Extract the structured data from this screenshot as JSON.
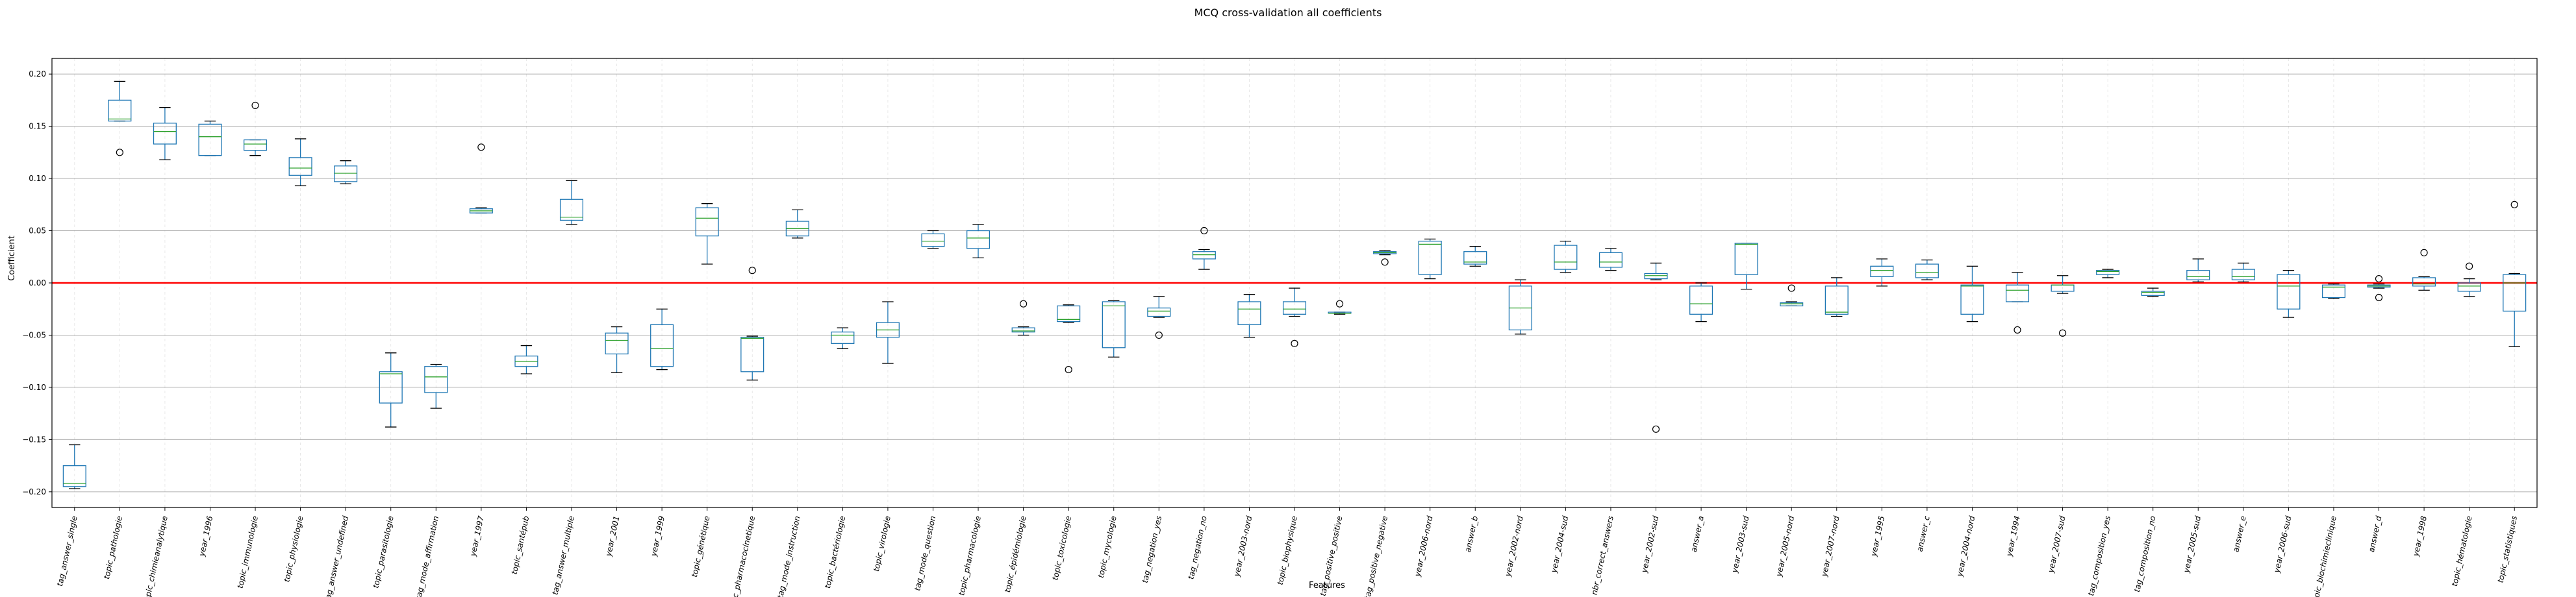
{
  "chart_data": {
    "type": "boxplot",
    "title": "MCQ cross-validation all coefficients",
    "xlabel": "Features",
    "ylabel": "Coefficient",
    "ylim": [
      -0.215,
      0.215
    ],
    "yticks": [
      0.2,
      0.15,
      0.1,
      0.05,
      0.0,
      -0.05,
      -0.1,
      -0.15,
      -0.2
    ],
    "ytick_labels": [
      "0.20",
      "0.15",
      "0.10",
      "0.05",
      "0.00",
      "−0.05",
      "−0.10",
      "−0.15",
      "−0.20"
    ],
    "grid": true,
    "reference_line": {
      "y": 0,
      "color": "#ff0000"
    },
    "colors": {
      "box": "#1f77b4",
      "median": "#2ca02c",
      "zero_line": "#ff0000",
      "grid": "#b0b0b0"
    },
    "boxes": [
      {
        "feature": "tag_answer_single",
        "whislo": -0.197,
        "q1": -0.195,
        "med": -0.192,
        "q3": -0.175,
        "whishi": -0.155,
        "fliers": []
      },
      {
        "feature": "topic_pathologie",
        "whislo": 0.155,
        "q1": 0.155,
        "med": 0.157,
        "q3": 0.175,
        "whishi": 0.193,
        "fliers": [
          0.125
        ]
      },
      {
        "feature": "topic_chimieanalytique",
        "whislo": 0.118,
        "q1": 0.133,
        "med": 0.145,
        "q3": 0.153,
        "whishi": 0.168,
        "fliers": []
      },
      {
        "feature": "year_1996",
        "whislo": 0.122,
        "q1": 0.122,
        "med": 0.14,
        "q3": 0.152,
        "whishi": 0.155,
        "fliers": []
      },
      {
        "feature": "topic_immunologie",
        "whislo": 0.122,
        "q1": 0.127,
        "med": 0.133,
        "q3": 0.137,
        "whishi": 0.137,
        "fliers": [
          0.17
        ]
      },
      {
        "feature": "topic_physiologie",
        "whislo": 0.093,
        "q1": 0.103,
        "med": 0.11,
        "q3": 0.12,
        "whishi": 0.138,
        "fliers": []
      },
      {
        "feature": "tag_answer_undefined",
        "whislo": 0.095,
        "q1": 0.097,
        "med": 0.105,
        "q3": 0.112,
        "whishi": 0.117,
        "fliers": []
      },
      {
        "feature": "topic_parasitologie",
        "whislo": -0.138,
        "q1": -0.115,
        "med": -0.087,
        "q3": -0.085,
        "whishi": -0.067,
        "fliers": []
      },
      {
        "feature": "tag_mode_affirmation",
        "whislo": -0.12,
        "q1": -0.105,
        "med": -0.09,
        "q3": -0.08,
        "whishi": -0.078,
        "fliers": []
      },
      {
        "feature": "year_1997",
        "whislo": 0.067,
        "q1": 0.067,
        "med": 0.069,
        "q3": 0.071,
        "whishi": 0.072,
        "fliers": [
          0.13
        ]
      },
      {
        "feature": "topic_santépub",
        "whislo": -0.087,
        "q1": -0.08,
        "med": -0.075,
        "q3": -0.07,
        "whishi": -0.06,
        "fliers": []
      },
      {
        "feature": "tag_answer_multiple",
        "whislo": 0.056,
        "q1": 0.06,
        "med": 0.063,
        "q3": 0.08,
        "whishi": 0.098,
        "fliers": []
      },
      {
        "feature": "year_2001",
        "whislo": -0.086,
        "q1": -0.068,
        "med": -0.055,
        "q3": -0.048,
        "whishi": -0.042,
        "fliers": []
      },
      {
        "feature": "year_1999",
        "whislo": -0.083,
        "q1": -0.08,
        "med": -0.063,
        "q3": -0.04,
        "whishi": -0.025,
        "fliers": []
      },
      {
        "feature": "topic_génétique",
        "whislo": 0.018,
        "q1": 0.045,
        "med": 0.062,
        "q3": 0.072,
        "whishi": 0.076,
        "fliers": []
      },
      {
        "feature": "topic_pharmacocinetique",
        "whislo": -0.093,
        "q1": -0.085,
        "med": -0.053,
        "q3": -0.052,
        "whishi": -0.051,
        "fliers": [
          0.012
        ]
      },
      {
        "feature": "tag_mode_instruction",
        "whislo": 0.043,
        "q1": 0.045,
        "med": 0.052,
        "q3": 0.059,
        "whishi": 0.07,
        "fliers": []
      },
      {
        "feature": "topic_bactériologie",
        "whislo": -0.063,
        "q1": -0.058,
        "med": -0.05,
        "q3": -0.047,
        "whishi": -0.043,
        "fliers": []
      },
      {
        "feature": "topic_virologie",
        "whislo": -0.077,
        "q1": -0.052,
        "med": -0.045,
        "q3": -0.038,
        "whishi": -0.018,
        "fliers": []
      },
      {
        "feature": "tag_mode_question",
        "whislo": 0.033,
        "q1": 0.035,
        "med": 0.04,
        "q3": 0.047,
        "whishi": 0.05,
        "fliers": []
      },
      {
        "feature": "topic_pharmacologie",
        "whislo": 0.024,
        "q1": 0.033,
        "med": 0.043,
        "q3": 0.05,
        "whishi": 0.056,
        "fliers": []
      },
      {
        "feature": "topic_épidémiologie",
        "whislo": -0.05,
        "q1": -0.047,
        "med": -0.046,
        "q3": -0.043,
        "whishi": -0.042,
        "fliers": [
          -0.02
        ]
      },
      {
        "feature": "topic_toxicologie",
        "whislo": -0.038,
        "q1": -0.037,
        "med": -0.035,
        "q3": -0.022,
        "whishi": -0.021,
        "fliers": [
          -0.083
        ]
      },
      {
        "feature": "topic_mycologie",
        "whislo": -0.071,
        "q1": -0.062,
        "med": -0.022,
        "q3": -0.018,
        "whishi": -0.017,
        "fliers": []
      },
      {
        "feature": "tag_negation_yes",
        "whislo": -0.033,
        "q1": -0.032,
        "med": -0.027,
        "q3": -0.024,
        "whishi": -0.013,
        "fliers": [
          -0.05
        ]
      },
      {
        "feature": "tag_negation_no",
        "whislo": 0.013,
        "q1": 0.023,
        "med": 0.027,
        "q3": 0.03,
        "whishi": 0.032,
        "fliers": [
          0.05
        ]
      },
      {
        "feature": "year_2003-nord",
        "whislo": -0.052,
        "q1": -0.04,
        "med": -0.025,
        "q3": -0.018,
        "whishi": -0.011,
        "fliers": []
      },
      {
        "feature": "topic_biophysique",
        "whislo": -0.032,
        "q1": -0.03,
        "med": -0.025,
        "q3": -0.018,
        "whishi": -0.005,
        "fliers": [
          -0.058
        ]
      },
      {
        "feature": "tag_positive_positive",
        "whislo": -0.03,
        "q1": -0.029,
        "med": -0.029,
        "q3": -0.028,
        "whishi": -0.028,
        "fliers": [
          -0.02
        ]
      },
      {
        "feature": "tag_positive_negative",
        "whislo": 0.027,
        "q1": 0.028,
        "med": 0.029,
        "q3": 0.03,
        "whishi": 0.031,
        "fliers": [
          0.02
        ]
      },
      {
        "feature": "year_2006-nord",
        "whislo": 0.004,
        "q1": 0.008,
        "med": 0.037,
        "q3": 0.04,
        "whishi": 0.042,
        "fliers": []
      },
      {
        "feature": "answer_b",
        "whislo": 0.016,
        "q1": 0.018,
        "med": 0.02,
        "q3": 0.03,
        "whishi": 0.035,
        "fliers": []
      },
      {
        "feature": "year_2002-nord",
        "whislo": -0.049,
        "q1": -0.045,
        "med": -0.024,
        "q3": -0.003,
        "whishi": 0.003,
        "fliers": []
      },
      {
        "feature": "year_2004-sud",
        "whislo": 0.01,
        "q1": 0.013,
        "med": 0.02,
        "q3": 0.036,
        "whishi": 0.04,
        "fliers": []
      },
      {
        "feature": "nbr_correct_answers",
        "whislo": 0.012,
        "q1": 0.015,
        "med": 0.02,
        "q3": 0.029,
        "whishi": 0.033,
        "fliers": []
      },
      {
        "feature": "year_2002-sud",
        "whislo": 0.003,
        "q1": 0.004,
        "med": 0.007,
        "q3": 0.009,
        "whishi": 0.019,
        "fliers": [
          -0.14
        ]
      },
      {
        "feature": "answer_a",
        "whislo": -0.037,
        "q1": -0.03,
        "med": -0.02,
        "q3": -0.003,
        "whishi": 0.0,
        "fliers": []
      },
      {
        "feature": "year_2003-sud",
        "whislo": -0.006,
        "q1": 0.008,
        "med": 0.037,
        "q3": 0.038,
        "whishi": 0.038,
        "fliers": []
      },
      {
        "feature": "year_2005-nord",
        "whislo": -0.022,
        "q1": -0.022,
        "med": -0.02,
        "q3": -0.019,
        "whishi": -0.018,
        "fliers": [
          -0.005
        ]
      },
      {
        "feature": "year_2007-nord",
        "whislo": -0.032,
        "q1": -0.03,
        "med": -0.028,
        "q3": -0.003,
        "whishi": 0.005,
        "fliers": []
      },
      {
        "feature": "year_1995",
        "whislo": -0.003,
        "q1": 0.006,
        "med": 0.012,
        "q3": 0.016,
        "whishi": 0.023,
        "fliers": []
      },
      {
        "feature": "answer_c",
        "whislo": 0.003,
        "q1": 0.005,
        "med": 0.01,
        "q3": 0.018,
        "whishi": 0.022,
        "fliers": []
      },
      {
        "feature": "year_2004-nord",
        "whislo": -0.037,
        "q1": -0.03,
        "med": -0.003,
        "q3": -0.002,
        "whishi": 0.016,
        "fliers": []
      },
      {
        "feature": "year_1994",
        "whislo": -0.018,
        "q1": -0.018,
        "med": -0.007,
        "q3": -0.002,
        "whishi": 0.01,
        "fliers": [
          -0.045
        ]
      },
      {
        "feature": "year_2007-sud",
        "whislo": -0.01,
        "q1": -0.008,
        "med": -0.002,
        "q3": -0.002,
        "whishi": 0.007,
        "fliers": [
          -0.048
        ]
      },
      {
        "feature": "tag_composition_yes",
        "whislo": 0.005,
        "q1": 0.008,
        "med": 0.011,
        "q3": 0.012,
        "whishi": 0.013,
        "fliers": []
      },
      {
        "feature": "tag_composition_no",
        "whislo": -0.013,
        "q1": -0.012,
        "med": -0.009,
        "q3": -0.008,
        "whishi": -0.005,
        "fliers": []
      },
      {
        "feature": "year_2005-sud",
        "whislo": 0.001,
        "q1": 0.003,
        "med": 0.006,
        "q3": 0.012,
        "whishi": 0.023,
        "fliers": []
      },
      {
        "feature": "answer_e",
        "whislo": 0.001,
        "q1": 0.003,
        "med": 0.006,
        "q3": 0.013,
        "whishi": 0.019,
        "fliers": []
      },
      {
        "feature": "year_2006-sud",
        "whislo": -0.033,
        "q1": -0.025,
        "med": -0.003,
        "q3": 0.008,
        "whishi": 0.012,
        "fliers": []
      },
      {
        "feature": "topic_biochimieclinique",
        "whislo": -0.015,
        "q1": -0.014,
        "med": -0.004,
        "q3": -0.002,
        "whishi": -0.001,
        "fliers": []
      },
      {
        "feature": "answer_d",
        "whislo": -0.005,
        "q1": -0.004,
        "med": -0.003,
        "q3": -0.002,
        "whishi": -0.001,
        "fliers": [
          0.004,
          -0.014
        ]
      },
      {
        "feature": "year_1998",
        "whislo": -0.007,
        "q1": -0.003,
        "med": -0.001,
        "q3": 0.005,
        "whishi": 0.006,
        "fliers": [
          0.029
        ]
      },
      {
        "feature": "topic_hématologie",
        "whislo": -0.013,
        "q1": -0.008,
        "med": -0.003,
        "q3": 0.0,
        "whishi": 0.004,
        "fliers": [
          0.016
        ]
      },
      {
        "feature": "topic_statistiques",
        "whislo": -0.061,
        "q1": -0.027,
        "med": 0.0,
        "q3": 0.008,
        "whishi": 0.009,
        "fliers": [
          0.075
        ]
      }
    ]
  }
}
